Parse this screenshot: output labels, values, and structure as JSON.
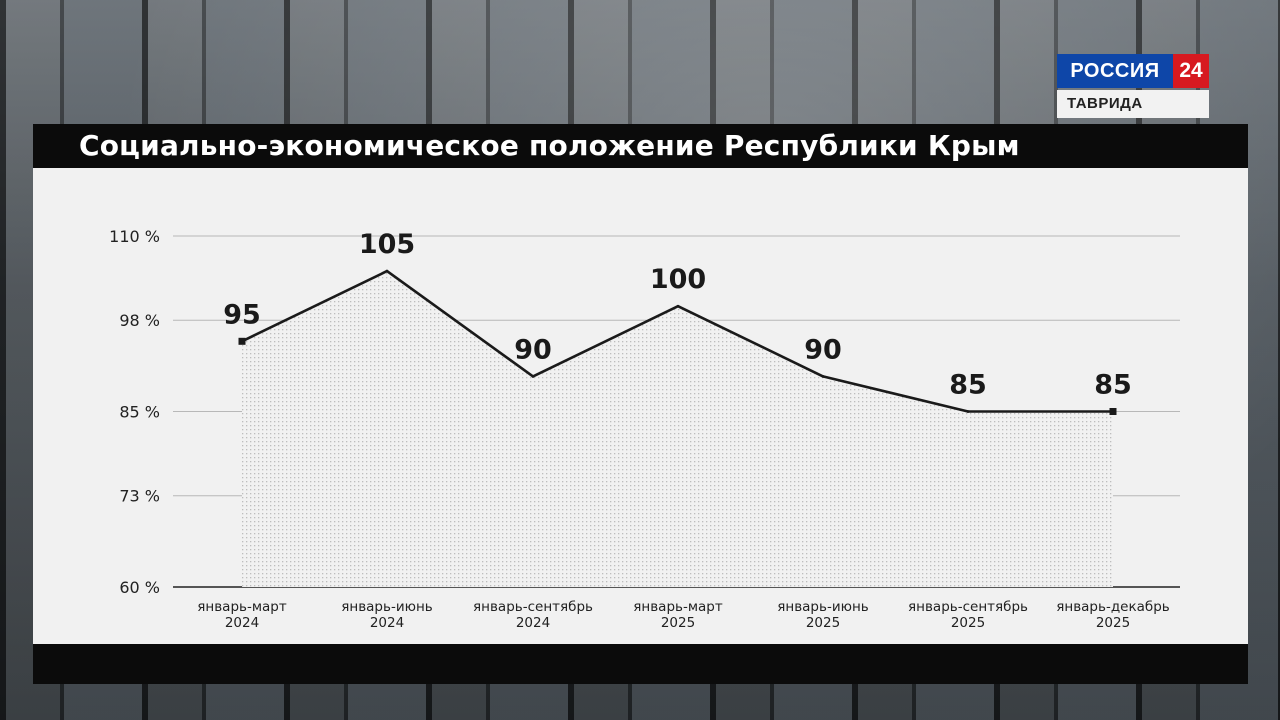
{
  "title": "Социально-экономическое положение Республики Крым",
  "logo": {
    "name": "РОССИЯ",
    "number": "24",
    "region": "ТАВРИДА"
  },
  "colors": {
    "line": "#1a1a1a",
    "panel": "#f1f1f1",
    "grid": "#b8b8b8",
    "logo_blue": "#0e46a8",
    "logo_red": "#d71920"
  },
  "chart_data": {
    "type": "line",
    "title": "Социально-экономическое положение Республики Крым",
    "categories": [
      [
        "январь-март",
        "2024"
      ],
      [
        "январь-июнь",
        "2024"
      ],
      [
        "январь-сентябрь",
        "2024"
      ],
      [
        "январь-март",
        "2025"
      ],
      [
        "январь-июнь",
        "2025"
      ],
      [
        "январь-сентябрь",
        "2025"
      ],
      [
        "январь-декабрь",
        "2025"
      ]
    ],
    "values": [
      95,
      105,
      90,
      100,
      90,
      85,
      85
    ],
    "data_labels": [
      "95",
      "105",
      "90",
      "100",
      "90",
      "85",
      "85"
    ],
    "yticks": [
      110,
      98,
      85,
      73,
      60
    ],
    "ytick_labels": [
      "110 %",
      "98 %",
      "85 %",
      "73 %",
      "60 %"
    ],
    "ylim": [
      60,
      110
    ],
    "grid": true,
    "area_fill": "dotted"
  }
}
